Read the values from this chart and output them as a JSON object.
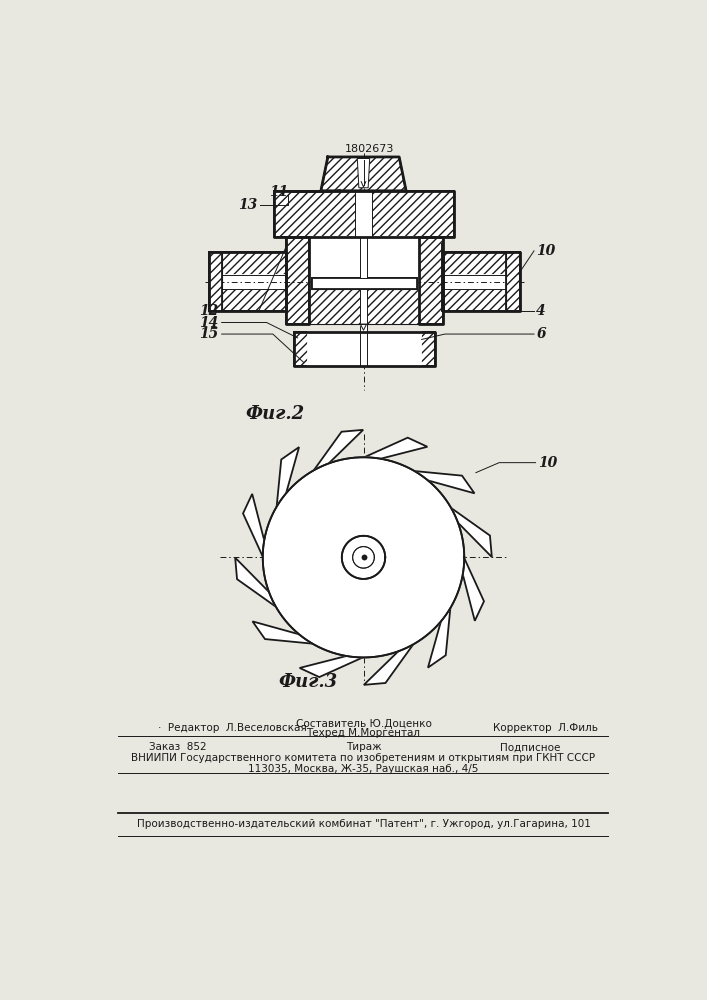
{
  "patent_number": "1802673",
  "fig2_label": "Фиг.2",
  "fig3_label": "Фиг.3",
  "bg_color": "#e8e8e0",
  "line_color": "#1a1a1a",
  "footer_col1_row1": "Редактор  Л.Веселовская",
  "footer_col2_row1a": "Составитель Ю.Доценко",
  "footer_col2_row1b": "Техред М.Моргентал",
  "footer_col3_row1": "Корректор  Л.Филь",
  "footer_zakaz": "Заказ  852",
  "footer_tirazh": "Тираж",
  "footer_podp": "Подписное",
  "footer_vniip1": "ВНИИПИ Государственного комитета по изобретениям и открытиям при ГКНТ СССР",
  "footer_vniip2": "113035, Москва, Ж-35, Раушская наб., 4/5",
  "footer_patent": "Производственно-издательский комбинат \"Патент\", г. Ужгород, ул.Гагарина, 101"
}
